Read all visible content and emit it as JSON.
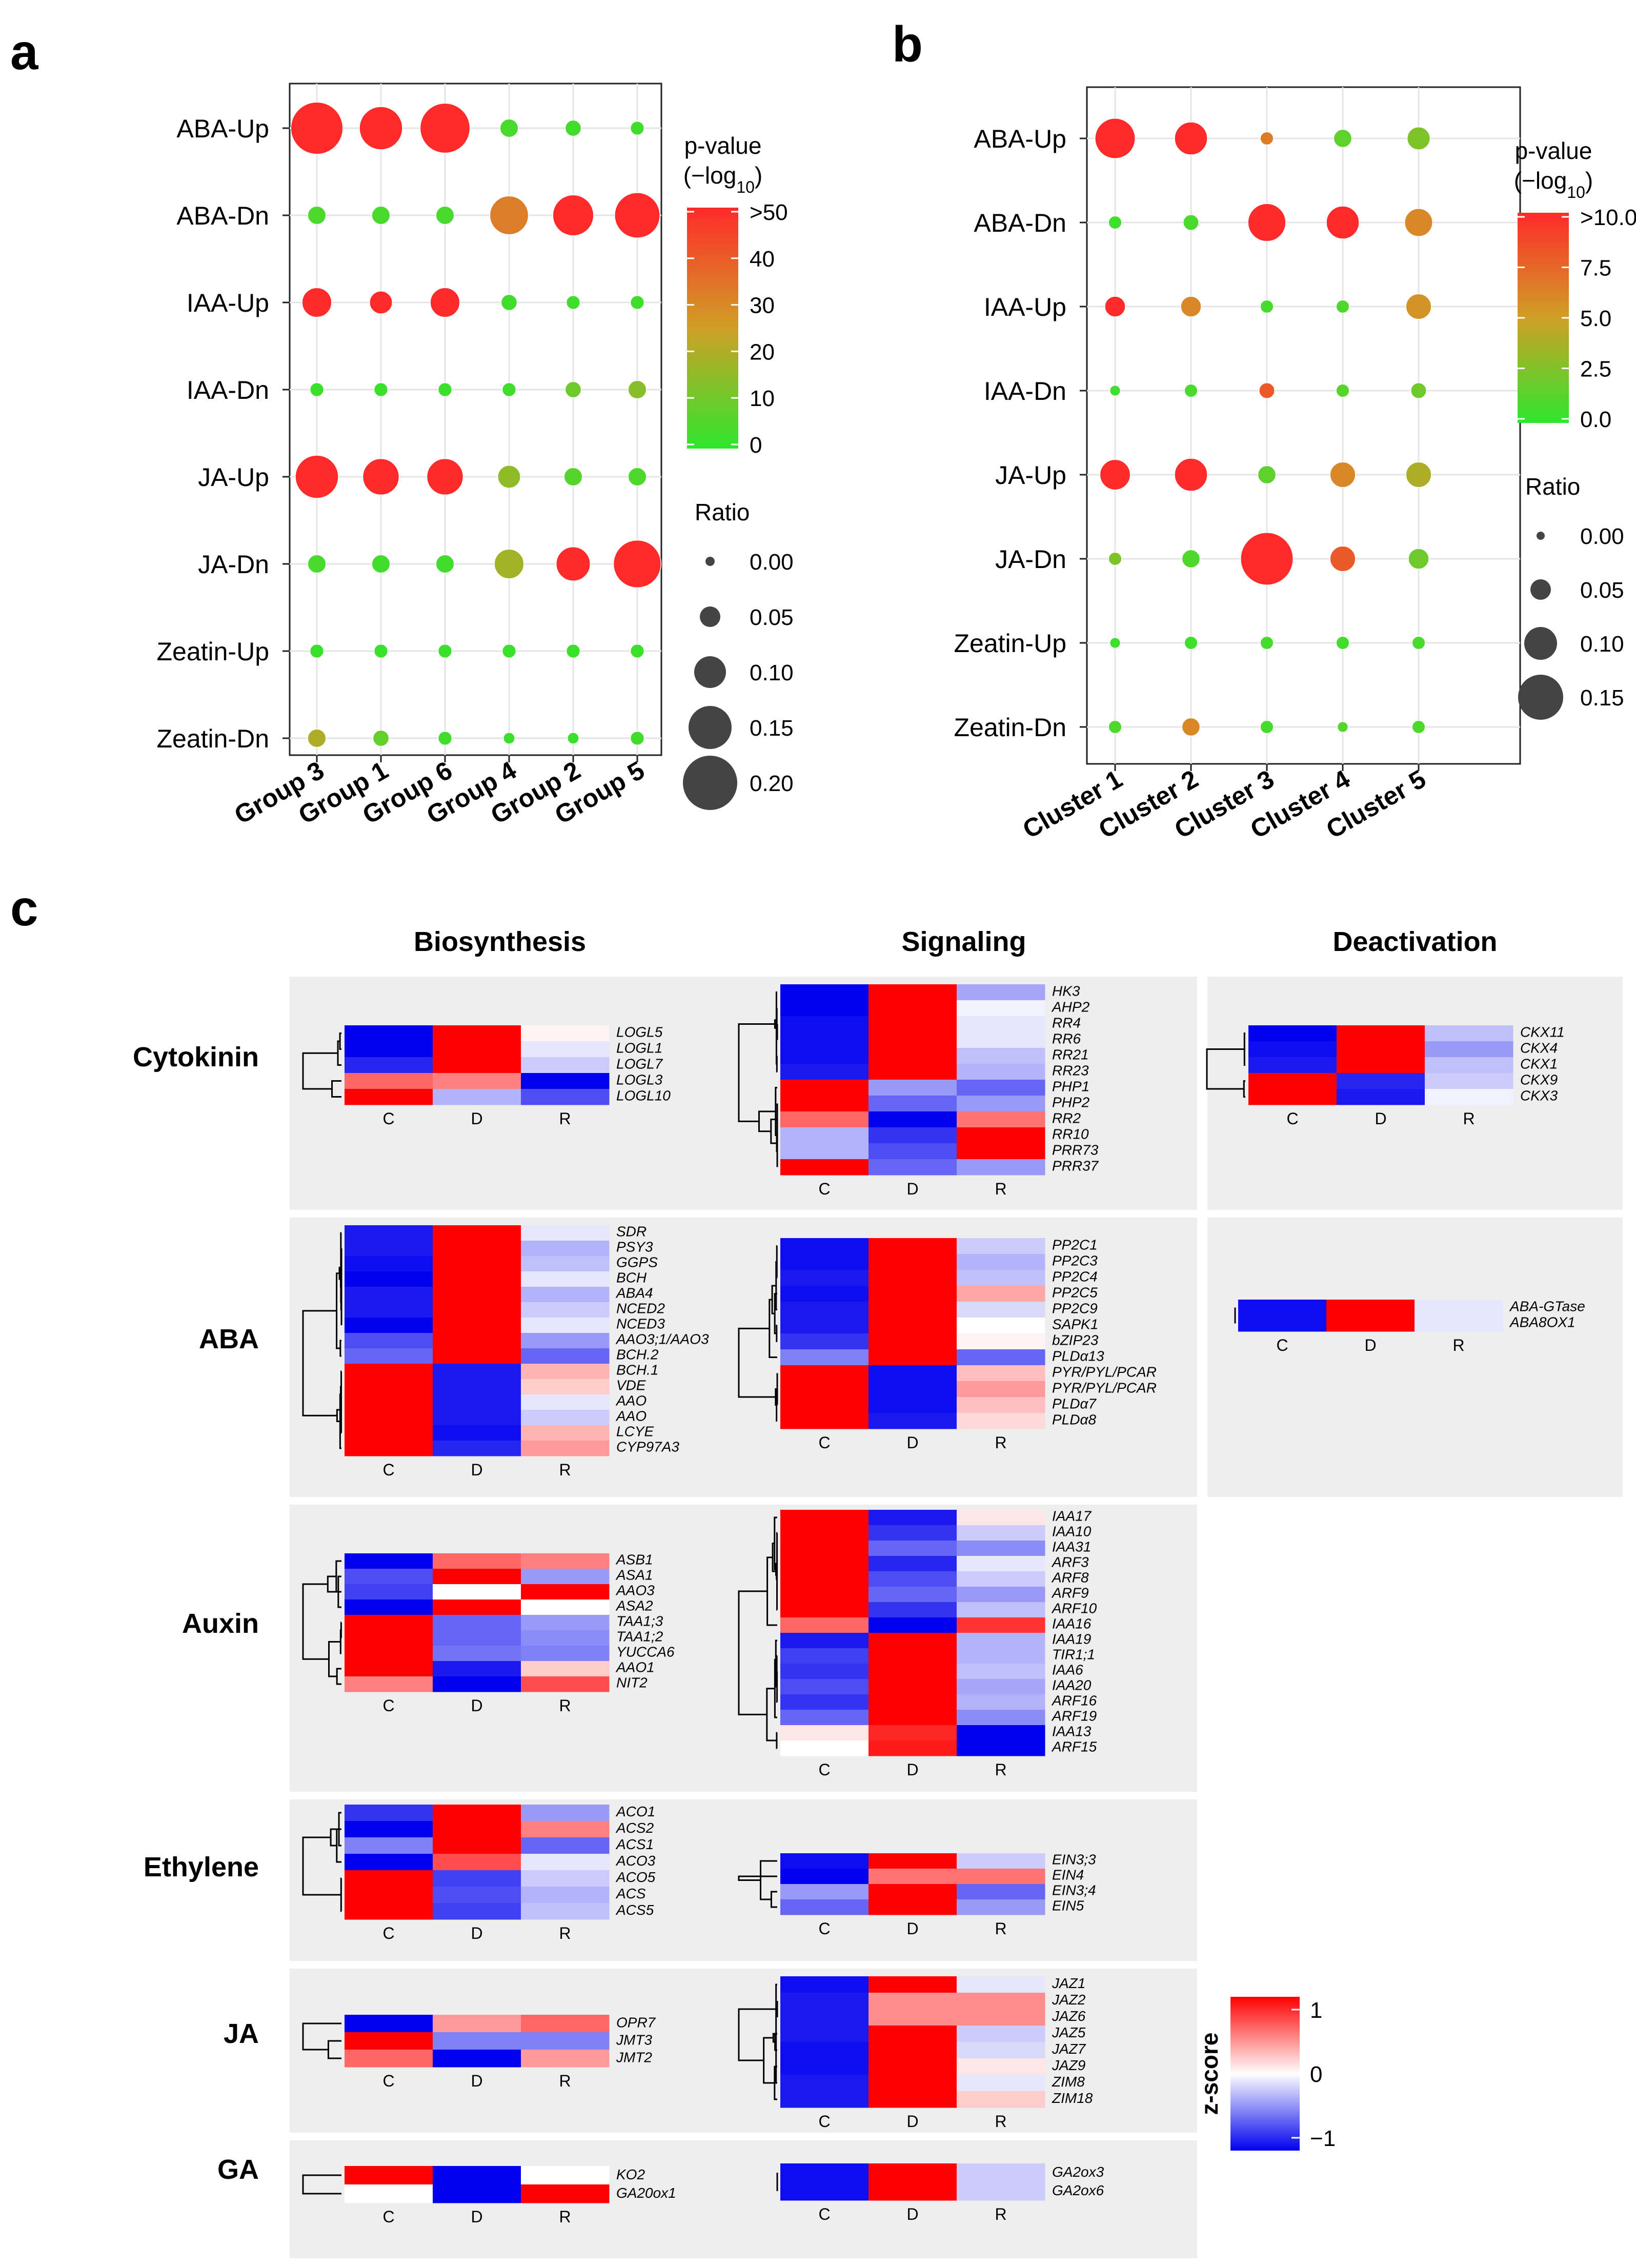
{
  "colors": {
    "high": "#ff2a2a",
    "mid": "#cf9f26",
    "low": "#2ee62e",
    "heat_high": "#ff0000",
    "heat_mid": "#ffffff",
    "heat_low": "#0000ee",
    "panel_bg": "#eeeeee",
    "dot_stroke": "#ffffff"
  },
  "panel_labels": {
    "a": "a",
    "b": "b",
    "c": "c"
  },
  "chart_data": [
    {
      "type": "scatter",
      "subtype": "bubble",
      "panel": "a",
      "x_categories": [
        "Group 3",
        "Group 1",
        "Group 6",
        "Group 4",
        "Group 2",
        "Group 5"
      ],
      "y_categories": [
        "ABA-Up",
        "ABA-Dn",
        "IAA-Up",
        "IAA-Dn",
        "JA-Up",
        "JA-Dn",
        "Zeatin-Up",
        "Zeatin-Dn"
      ],
      "color_legend": {
        "title_line1": "p-value",
        "title_line2": "(−log₁₀)",
        "ticks": [
          ">50",
          "40",
          "30",
          "20",
          "10",
          "0"
        ],
        "range": [
          0,
          50
        ]
      },
      "size_legend": {
        "title": "Ratio",
        "values": [
          0.0,
          0.05,
          0.1,
          0.15,
          0.2
        ],
        "labels": [
          "0.00",
          "0.05",
          "0.10",
          "0.15",
          "0.20"
        ]
      },
      "grid": true,
      "ratio": [
        [
          0.19,
          0.15,
          0.18,
          0.04,
          0.03,
          0.02
        ],
        [
          0.04,
          0.04,
          0.04,
          0.13,
          0.14,
          0.16
        ],
        [
          0.09,
          0.06,
          0.09,
          0.03,
          0.02,
          0.02
        ],
        [
          0.02,
          0.02,
          0.02,
          0.02,
          0.03,
          0.04
        ],
        [
          0.15,
          0.12,
          0.12,
          0.06,
          0.04,
          0.04
        ],
        [
          0.04,
          0.04,
          0.04,
          0.09,
          0.11,
          0.17
        ],
        [
          0.02,
          0.02,
          0.02,
          0.02,
          0.02,
          0.02
        ],
        [
          0.04,
          0.03,
          0.02,
          0.01,
          0.01,
          0.02
        ]
      ],
      "pvalue": [
        [
          50,
          50,
          50,
          4,
          3,
          3
        ],
        [
          5,
          4,
          4,
          32,
          50,
          50
        ],
        [
          50,
          50,
          50,
          3,
          3,
          3
        ],
        [
          2,
          2,
          2,
          3,
          10,
          14
        ],
        [
          50,
          50,
          50,
          15,
          6,
          5
        ],
        [
          4,
          3,
          3,
          18,
          50,
          50
        ],
        [
          2,
          2,
          2,
          2,
          2,
          2
        ],
        [
          20,
          8,
          3,
          2,
          2,
          3
        ]
      ]
    },
    {
      "type": "scatter",
      "subtype": "bubble",
      "panel": "b",
      "x_categories": [
        "Cluster 1",
        "Cluster 2",
        "Cluster 3",
        "Cluster 4",
        "Cluster 5"
      ],
      "y_categories": [
        "ABA-Up",
        "ABA-Dn",
        "IAA-Up",
        "IAA-Dn",
        "JA-Up",
        "JA-Dn",
        "Zeatin-Up",
        "Zeatin-Dn"
      ],
      "color_legend": {
        "title_line1": "p-value",
        "title_line2": "(−log₁₀)",
        "ticks": [
          ">10.0",
          "7.5",
          "5.0",
          "2.5",
          "0.0"
        ],
        "range": [
          0,
          10
        ]
      },
      "size_legend": {
        "title": "Ratio",
        "values": [
          0.0,
          0.05,
          0.1,
          0.15
        ],
        "labels": [
          "0.00",
          "0.05",
          "0.10",
          "0.15"
        ]
      },
      "grid": true,
      "ratio": [
        [
          0.13,
          0.1,
          0.02,
          0.04,
          0.06
        ],
        [
          0.02,
          0.03,
          0.12,
          0.1,
          0.08
        ],
        [
          0.05,
          0.05,
          0.02,
          0.02,
          0.07
        ],
        [
          0.01,
          0.02,
          0.03,
          0.02,
          0.03
        ],
        [
          0.09,
          0.1,
          0.04,
          0.07,
          0.07
        ],
        [
          0.02,
          0.04,
          0.18,
          0.07,
          0.05
        ],
        [
          0.01,
          0.02,
          0.02,
          0.02,
          0.02
        ],
        [
          0.02,
          0.04,
          0.02,
          0.01,
          0.02
        ]
      ],
      "pvalue": [
        [
          10,
          10,
          6.5,
          1.5,
          2.5
        ],
        [
          0.5,
          0.8,
          10,
          10,
          6
        ],
        [
          10,
          6,
          0.7,
          1,
          5.5
        ],
        [
          0.5,
          0.8,
          8,
          1.2,
          2
        ],
        [
          10,
          10,
          1.5,
          6,
          4
        ],
        [
          2.5,
          1,
          10,
          8,
          2
        ],
        [
          0.5,
          0.5,
          0.7,
          0.6,
          0.8
        ],
        [
          1,
          6,
          0.7,
          1.2,
          1
        ]
      ]
    },
    {
      "type": "heatmap",
      "panel": "c",
      "columns": [
        "Biosynthesis",
        "Signaling",
        "Deactivation"
      ],
      "rows": [
        "Cytokinin",
        "ABA",
        "Auxin",
        "Ethylene",
        "JA",
        "GA"
      ],
      "samples": [
        "C",
        "D",
        "R"
      ],
      "scale": {
        "title": "z-score",
        "ticks": [
          "1",
          "0",
          "−1"
        ],
        "range": [
          -1,
          1
        ]
      },
      "blocks": [
        {
          "row": "Cytokinin",
          "column": "Biosynthesis",
          "genes": [
            "LOGL5",
            "LOGL1",
            "LOGL7",
            "LOGL3",
            "LOGL10"
          ],
          "values": [
            [
              -1,
              1,
              0.05
            ],
            [
              -1,
              1,
              -0.1
            ],
            [
              -0.85,
              1,
              -0.2
            ],
            [
              0.6,
              0.5,
              -1
            ],
            [
              1,
              -0.3,
              -0.7
            ]
          ]
        },
        {
          "row": "Cytokinin",
          "column": "Signaling",
          "genes": [
            "HK3",
            "AHP2",
            "RR4",
            "RR6",
            "RR21",
            "RR23",
            "PHP1",
            "PHP2",
            "RR2",
            "RR10",
            "PRR73",
            "PRR37"
          ],
          "values": [
            [
              -1,
              1,
              -0.35
            ],
            [
              -1,
              1,
              -0.05
            ],
            [
              -0.95,
              1,
              -0.1
            ],
            [
              -0.95,
              1,
              -0.1
            ],
            [
              -0.95,
              1,
              -0.25
            ],
            [
              -0.9,
              1,
              -0.3
            ],
            [
              1,
              -0.4,
              -0.6
            ],
            [
              1,
              -0.6,
              -0.4
            ],
            [
              0.6,
              -1,
              0.55
            ],
            [
              -0.3,
              -0.8,
              1
            ],
            [
              -0.3,
              -0.7,
              1
            ],
            [
              1,
              -0.6,
              -0.4
            ]
          ]
        },
        {
          "row": "Cytokinin",
          "column": "Deactivation",
          "genes": [
            "CKX11",
            "CKX4",
            "CKX1",
            "CKX9",
            "CKX3"
          ],
          "values": [
            [
              -1,
              1,
              -0.25
            ],
            [
              -0.95,
              1,
              -0.4
            ],
            [
              -0.9,
              1,
              -0.25
            ],
            [
              1,
              -0.85,
              -0.2
            ],
            [
              1,
              -0.9,
              -0.05
            ]
          ]
        },
        {
          "row": "ABA",
          "column": "Biosynthesis",
          "genes": [
            "SDR",
            "PSY3",
            "GGPS",
            "BCH",
            "ABA4",
            "NCED2",
            "NCED3",
            "AAO3;1/AAO3",
            "BCH.2",
            "BCH.1",
            "VDE",
            "AAO",
            "AAO",
            "LCYE",
            "CYP97A3"
          ],
          "values": [
            [
              -0.9,
              1,
              -0.1
            ],
            [
              -0.9,
              1,
              -0.3
            ],
            [
              -0.95,
              1,
              -0.25
            ],
            [
              -1,
              1,
              -0.1
            ],
            [
              -0.9,
              1,
              -0.3
            ],
            [
              -0.9,
              1,
              -0.2
            ],
            [
              -1,
              1,
              -0.1
            ],
            [
              -0.7,
              1,
              -0.4
            ],
            [
              -0.6,
              1,
              -0.6
            ],
            [
              1,
              -0.9,
              0.3
            ],
            [
              1,
              -0.9,
              0.2
            ],
            [
              1,
              -0.9,
              -0.1
            ],
            [
              1,
              -0.9,
              -0.2
            ],
            [
              1,
              -0.95,
              0.3
            ],
            [
              1,
              -0.85,
              0.4
            ]
          ]
        },
        {
          "row": "ABA",
          "column": "Signaling",
          "genes": [
            "PP2C1",
            "PP2C3",
            "PP2C4",
            "PP2C5",
            "PP2C9",
            "SAPK1",
            "bZIP23",
            "PLDα13",
            "PYR/PYL/PCAR",
            "PYR/PYL/PCAR",
            "PLDα7",
            "PLDα8"
          ],
          "values": [
            [
              -0.95,
              1,
              -0.2
            ],
            [
              -0.95,
              1,
              -0.3
            ],
            [
              -0.9,
              1,
              -0.25
            ],
            [
              -0.95,
              1,
              0.35
            ],
            [
              -0.9,
              1,
              -0.15
            ],
            [
              -0.9,
              1,
              0.0
            ],
            [
              -0.8,
              1,
              0.05
            ],
            [
              -0.5,
              1,
              -0.6
            ],
            [
              1,
              -0.95,
              0.25
            ],
            [
              1,
              -0.95,
              0.4
            ],
            [
              1,
              -0.95,
              0.25
            ],
            [
              1,
              -0.9,
              0.15
            ]
          ]
        },
        {
          "row": "ABA",
          "column": "Deactivation",
          "genes": [
            "ABA-GTase",
            "ABA8OX1"
          ],
          "values": [
            [
              -0.95,
              1,
              -0.1
            ],
            [
              -0.95,
              1,
              -0.1
            ]
          ]
        },
        {
          "row": "Auxin",
          "column": "Biosynthesis",
          "genes": [
            "ASB1",
            "ASA1",
            "AAO3",
            "ASA2",
            "TAA1;3",
            "TAA1;2",
            "YUCCA6",
            "AAO1",
            "NIT2"
          ],
          "values": [
            [
              -1,
              0.6,
              0.5
            ],
            [
              -0.7,
              1,
              -0.4
            ],
            [
              -0.75,
              0.0,
              1
            ],
            [
              -1,
              1,
              0.0
            ],
            [
              1,
              -0.6,
              -0.4
            ],
            [
              1,
              -0.6,
              -0.45
            ],
            [
              1,
              -0.55,
              -0.5
            ],
            [
              1,
              -0.9,
              0.2
            ],
            [
              0.5,
              -1,
              0.7
            ]
          ]
        },
        {
          "row": "Auxin",
          "column": "Signaling",
          "genes": [
            "IAA17",
            "IAA10",
            "IAA31",
            "ARF3",
            "ARF8",
            "ARF9",
            "ARF10",
            "IAA16",
            "IAA19",
            "TIR1;1",
            "IAA6",
            "IAA20",
            "ARF16",
            "ARF19",
            "IAA13",
            "ARF15"
          ],
          "values": [
            [
              1,
              -0.9,
              0.1
            ],
            [
              1,
              -0.8,
              -0.2
            ],
            [
              1,
              -0.6,
              -0.45
            ],
            [
              1,
              -0.85,
              -0.1
            ],
            [
              1,
              -0.7,
              -0.2
            ],
            [
              1,
              -0.6,
              -0.4
            ],
            [
              1,
              -0.8,
              -0.25
            ],
            [
              0.6,
              -1,
              0.8
            ],
            [
              -0.9,
              1,
              -0.3
            ],
            [
              -0.75,
              1,
              -0.3
            ],
            [
              -0.8,
              1,
              -0.25
            ],
            [
              -0.7,
              1,
              -0.35
            ],
            [
              -0.8,
              1,
              -0.3
            ],
            [
              -0.6,
              1,
              -0.45
            ],
            [
              0.1,
              0.85,
              -1
            ],
            [
              0.0,
              0.9,
              -1
            ]
          ]
        },
        {
          "row": "Ethylene",
          "column": "Biosynthesis",
          "genes": [
            "ACO1",
            "ACS2",
            "ACS1",
            "ACO3",
            "ACO5",
            "ACS",
            "ACS5"
          ],
          "values": [
            [
              -0.8,
              1,
              -0.4
            ],
            [
              -1,
              1,
              0.5
            ],
            [
              -0.5,
              1,
              -0.6
            ],
            [
              -1,
              0.7,
              -0.1
            ],
            [
              1,
              -0.75,
              -0.2
            ],
            [
              1,
              -0.7,
              -0.3
            ],
            [
              1,
              -0.75,
              -0.25
            ]
          ]
        },
        {
          "row": "Ethylene",
          "column": "Signaling",
          "genes": [
            "EIN3;3",
            "EIN4",
            "EIN3;4",
            "EIN5"
          ],
          "values": [
            [
              -0.95,
              1,
              -0.2
            ],
            [
              -1,
              0.55,
              0.55
            ],
            [
              -0.4,
              1,
              -0.6
            ],
            [
              -0.6,
              1,
              -0.4
            ]
          ]
        },
        {
          "row": "JA",
          "column": "Biosynthesis",
          "genes": [
            "OPR7",
            "JMT3",
            "JMT2"
          ],
          "values": [
            [
              -1,
              0.4,
              0.6
            ],
            [
              1,
              -0.5,
              -0.5
            ],
            [
              0.6,
              -1,
              0.4
            ]
          ]
        },
        {
          "row": "JA",
          "column": "Signaling",
          "genes": [
            "JAZ1",
            "JAZ2",
            "JAZ6",
            "JAZ5",
            "JAZ7",
            "JAZ9",
            "ZIM8",
            "ZIM18"
          ],
          "values": [
            [
              -0.95,
              1,
              -0.1
            ],
            [
              -0.9,
              0.45,
              0.45
            ],
            [
              -0.9,
              0.45,
              0.45
            ],
            [
              -0.9,
              1,
              -0.2
            ],
            [
              -0.95,
              1,
              -0.15
            ],
            [
              -0.95,
              1,
              0.1
            ],
            [
              -0.9,
              1,
              -0.1
            ],
            [
              -0.9,
              1,
              0.2
            ]
          ]
        },
        {
          "row": "GA",
          "column": "Biosynthesis",
          "genes": [
            "KO2",
            "GA20ox1"
          ],
          "values": [
            [
              1,
              -1,
              0.0
            ],
            [
              0.0,
              -1,
              1
            ]
          ]
        },
        {
          "row": "GA",
          "column": "Signaling",
          "genes": [
            "GA2ox3",
            "GA2ox6"
          ],
          "values": [
            [
              -0.95,
              1,
              -0.2
            ],
            [
              -0.95,
              1,
              -0.2
            ]
          ]
        }
      ]
    }
  ]
}
